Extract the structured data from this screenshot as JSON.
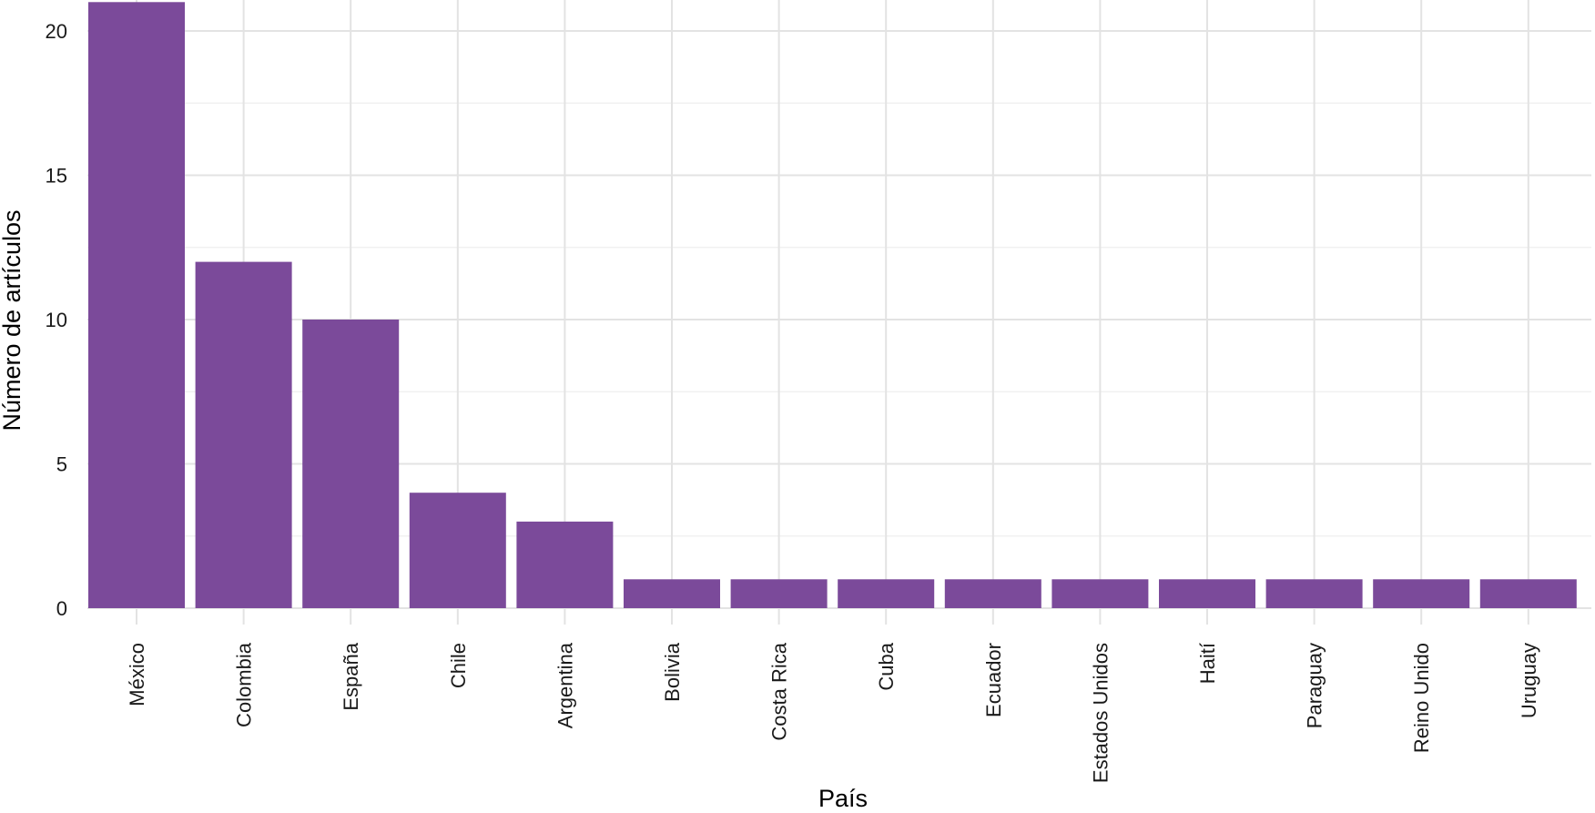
{
  "chart_data": {
    "type": "bar",
    "xlabel": "País",
    "ylabel": "Número de artículos",
    "categories": [
      "México",
      "Colombia",
      "España",
      "Chile",
      "Argentina",
      "Bolivia",
      "Costa Rica",
      "Cuba",
      "Ecuador",
      "Estados Unidos",
      "Haití",
      "Paraguay",
      "Reino Unido",
      "Uruguay"
    ],
    "values": [
      21,
      12,
      10,
      4,
      3,
      1,
      1,
      1,
      1,
      1,
      1,
      1,
      1,
      1
    ],
    "ylim": [
      0,
      21.5
    ],
    "yticks": [
      0,
      5,
      10,
      15,
      20
    ],
    "grid": true,
    "legend": "none",
    "colors": {
      "bar": "#7b4a9a",
      "grid_major": "#e3e3e3",
      "grid_minor": "#f1f1f1",
      "background": "#ffffff"
    }
  }
}
